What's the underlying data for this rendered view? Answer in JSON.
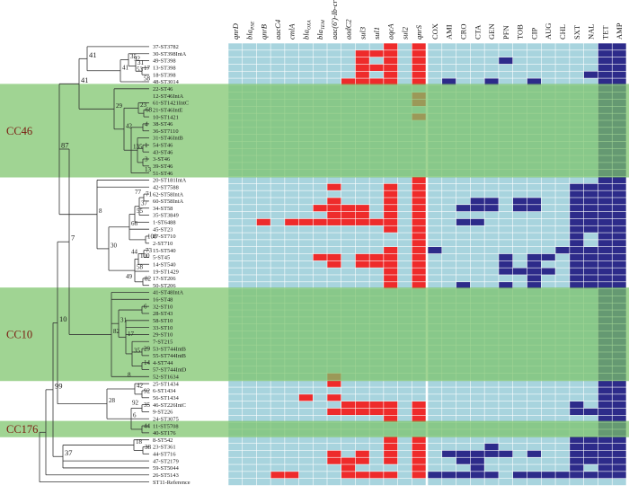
{
  "gene_columns": [
    {
      "label": "qnrD"
    },
    {
      "label": "bla",
      "sub": "PSE"
    },
    {
      "label": "qnrB"
    },
    {
      "label": "aacC4"
    },
    {
      "label": "cmlA"
    },
    {
      "label": "bla",
      "sub": "OXA"
    },
    {
      "label": "bla",
      "sub": "TEM"
    },
    {
      "label": "aac(6')-Ib-cr"
    },
    {
      "label": "aadC2"
    },
    {
      "label": "sul3"
    },
    {
      "label": "sul1"
    },
    {
      "label": "aqcA"
    },
    {
      "label": "sul2"
    },
    {
      "label": "qnrS"
    }
  ],
  "antibiotic_columns": [
    "COX",
    "AMI",
    "CRO",
    "CTA",
    "GEN",
    "PFN",
    "TOB",
    "CIP",
    "AUG",
    "CHL",
    "SXT",
    "NAL",
    "TET",
    "AMP"
  ],
  "strains": [
    "37-ST3782",
    "30-ST398IntA",
    "49-ST398",
    "13-ST398",
    "18-ST398",
    "48-ST3014",
    "22-ST46",
    "12-ST46IntA",
    "61-ST1421IntC",
    "21-ST46IntE",
    "10-ST1421",
    "38-ST46",
    "36-ST7110",
    "31-ST46IntB",
    "54-ST46",
    "43-ST46",
    "3-ST46",
    "39-ST46",
    "51-ST46",
    "20-ST181IntA",
    "42-ST7588",
    "62-ST58IntA",
    "60-ST58IntA",
    "34-ST58",
    "35-ST3849",
    "1-ST6488",
    "45-ST23",
    "27-ST710",
    "2-ST710",
    "15-ST540",
    "5-ST45",
    "14-ST540",
    "19-ST1429",
    "17-ST206",
    "50-ST206",
    "41-ST48IntA",
    "16-ST48",
    "32-ST10",
    "28-ST43",
    "58-ST10",
    "33-ST10",
    "29-ST10",
    "7-ST215",
    "53-ST744IntB",
    "55-ST744IntB",
    "4-ST744",
    "57-ST744IntD",
    "52-ST1634",
    "25-ST1434",
    "6-ST1434",
    "56-ST1434",
    "46-ST226IntC",
    "9-ST226",
    "24-ST3075",
    "11-ST5708",
    "40-ST176",
    "8-ST542",
    "23-ST361",
    "44-ST716",
    "47-ST2179",
    "59-ST5044",
    "26-ST5143",
    "ST11-Reference"
  ],
  "clonal_complexes": [
    {
      "label": "CC46",
      "first_row": 6,
      "last_row": 18
    },
    {
      "label": "CC10",
      "first_row": 35,
      "last_row": 47
    },
    {
      "label": "CC176",
      "first_row": 54,
      "last_row": 55
    }
  ],
  "bootstrap_values": [
    "41",
    "35",
    "92",
    "53",
    "58",
    "29",
    "42",
    "23",
    "68",
    "13",
    "4",
    "5",
    "1",
    "3",
    "87",
    "8",
    "71",
    "77",
    "37",
    "55",
    "66",
    "100",
    "30",
    "73",
    "100",
    "58",
    "44",
    "82",
    "49",
    "7",
    "82",
    "6",
    "31",
    "17",
    "29",
    "35",
    "14",
    "8",
    "42",
    "92",
    "35",
    "28",
    "92",
    "6",
    "44",
    "10",
    "18",
    "38",
    "37",
    "99"
  ],
  "colors": {
    "cell_background": "#a8d4de",
    "gene_present": "#ee2b2b",
    "resistant": "#2d2b8a",
    "cc_band": "#7cc46a",
    "cc_label": "#7a1a10",
    "tree_line": "#333333"
  },
  "gene_matrix": [
    "00000000000101",
    "00000000011101",
    "00000000010101",
    "00000000011101",
    "00000000010101",
    "00000000111101",
    "00000000000000",
    "00000000000001",
    "00000000000001",
    "00000000000000",
    "00000000000001",
    "00000000000000",
    "00000000000000",
    "00000000000000",
    "00000000000000",
    "00000000000000",
    "00000000000000",
    "00000000000000",
    "00000000000000",
    "00000000000001",
    "00000001000101",
    "00000000000101",
    "00000001000101",
    "00000011110101",
    "00000001110101",
    "00101111111101",
    "00000000000101",
    "00000000000001",
    "00000000000001",
    "00000000000101",
    "00000011011101",
    "00000001011101",
    "00000000000101",
    "00000000000101",
    "00000000000101",
    "00000000000000",
    "00000000000000",
    "00000000000000",
    "00000000000000",
    "00000000000000",
    "00000000000000",
    "00000000000000",
    "00000000000000",
    "00000000000000",
    "00000000000000",
    "00000000000000",
    "00000000000000",
    "00000001000000",
    "00000001000000",
    "00000000000000",
    "00000101000000",
    "00000000111101",
    "00000001111101",
    "00000000000101",
    "00000000000000",
    "00000000000000",
    "00000000000101",
    "00000000000101",
    "00000001010101",
    "00000001110101",
    "00000000100001",
    "00011000111101",
    "00000000000000"
  ],
  "resistance_matrix": [
    "00000000000011",
    "00000000000011",
    "00000100000011",
    "00000000000011",
    "00000000000111",
    "01001001000011",
    "00000000000011",
    "00000000000011",
    "00000000000011",
    "00000000000011",
    "00000000000011",
    "00000000000011",
    "00000000000011",
    "00000000000011",
    "00000000000011",
    "00000000000011",
    "00000000000011",
    "00000000000011",
    "00000000000011",
    "00000000000011",
    "00000000001111",
    "00000000001111",
    "00011011001111",
    "00111011001111",
    "00000000001111",
    "00110000001111",
    "00000000001111",
    "00000000001011",
    "00000000001011",
    "10000000011111",
    "00000101101111",
    "00000101001111",
    "00000111101111",
    "00000001001111",
    "00100101001111",
    "00000000000011",
    "00000000000011",
    "00000000000011",
    "00000000000011",
    "00000000000011",
    "00000000000011",
    "00000000000011",
    "00000000000011",
    "00000000000011",
    "00000000000011",
    "00000000000011",
    "00000000000011",
    "00000000000011",
    "00000000000011",
    "00000000000011",
    "00000000000011",
    "00000000001011",
    "00000000001111",
    "00000000000011",
    "00000000000011",
    "00000000000011",
    "00000000001111",
    "00001000001111",
    "01111101001111",
    "00110000001111",
    "00010000001011",
    "11111011111111",
    "00000000000000"
  ]
}
